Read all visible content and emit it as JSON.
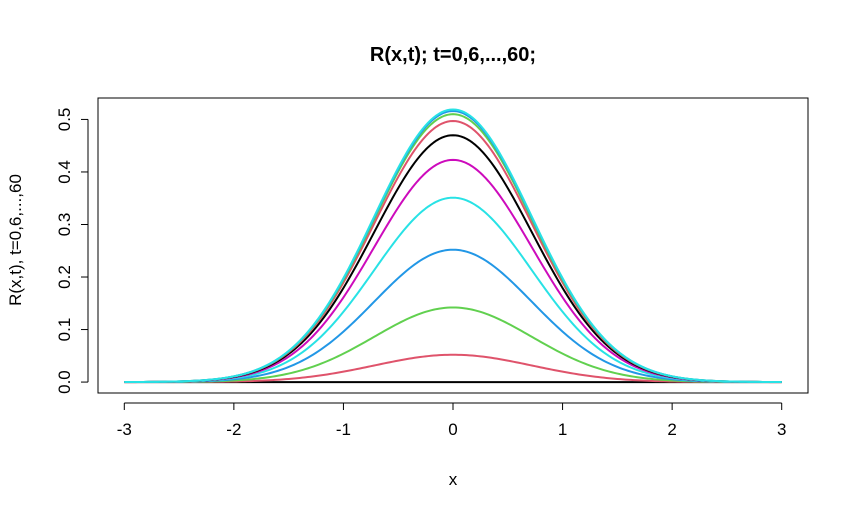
{
  "chart_data": {
    "type": "line",
    "title": "R(x,t); t=0,6,...,60;",
    "xlabel": "x",
    "ylabel": "R(x,t), t=0,6,...,60",
    "xlim": [
      -3,
      3
    ],
    "ylim": [
      0,
      0.52
    ],
    "x_ticks": [
      "-3",
      "-2",
      "-1",
      "0",
      "1",
      "2",
      "3"
    ],
    "y_ticks": [
      "0.0",
      "0.1",
      "0.2",
      "0.3",
      "0.4",
      "0.5"
    ],
    "grid": false,
    "legend": "none",
    "curve_shape": "gaussian",
    "sigma": 0.72,
    "series": [
      {
        "t": 0,
        "peak": 0.0,
        "color": "#000000"
      },
      {
        "t": 6,
        "peak": 0.052,
        "color": "#DF536B"
      },
      {
        "t": 12,
        "peak": 0.142,
        "color": "#61D04F"
      },
      {
        "t": 18,
        "peak": 0.252,
        "color": "#2297E6"
      },
      {
        "t": 24,
        "peak": 0.351,
        "color": "#28E2E5"
      },
      {
        "t": 30,
        "peak": 0.423,
        "color": "#CD0BBC"
      },
      {
        "t": 36,
        "peak": 0.47,
        "color": "#000000"
      },
      {
        "t": 42,
        "peak": 0.497,
        "color": "#DF536B"
      },
      {
        "t": 48,
        "peak": 0.51,
        "color": "#61D04F"
      },
      {
        "t": 54,
        "peak": 0.516,
        "color": "#2297E6"
      },
      {
        "t": 60,
        "peak": 0.519,
        "color": "#28E2E5"
      }
    ]
  }
}
